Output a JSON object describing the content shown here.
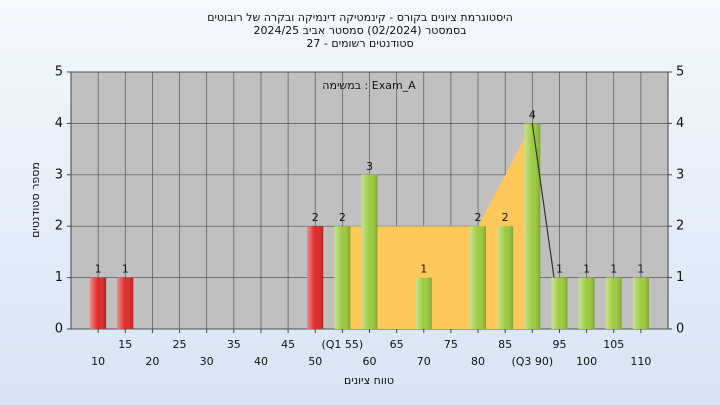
{
  "chart_data": {
    "type": "bar",
    "title": "היסטוגרמת ציונים בקורס - קינמטיקה דינמיקה ובקרה של רובוטים",
    "subtitle": "בסמסטר  (02/2024)  סמסטר אביב 2024/25",
    "subtitle2": "סטודנטים רשומים - 27",
    "annotation": "במשימה : Exam_A",
    "xlabel": "טווח ציונים",
    "ylabel": "מספר סטודנטים",
    "x": [
      10,
      15,
      20,
      25,
      30,
      35,
      40,
      45,
      50,
      55,
      60,
      65,
      70,
      75,
      80,
      85,
      90,
      95,
      100,
      105,
      110
    ],
    "values": [
      1,
      1,
      0,
      0,
      0,
      0,
      0,
      0,
      2,
      2,
      3,
      0,
      1,
      0,
      2,
      2,
      4,
      1,
      1,
      1,
      1
    ],
    "colors": [
      "#e02828",
      "#e02828",
      "#e02828",
      "#e02828",
      "#e02828",
      "#e02828",
      "#e02828",
      "#e02828",
      "#e02828",
      "#9ccc3c",
      "#9ccc3c",
      "#9ccc3c",
      "#9ccc3c",
      "#9ccc3c",
      "#9ccc3c",
      "#9ccc3c",
      "#9ccc3c",
      "#9ccc3c",
      "#9ccc3c",
      "#9ccc3c",
      "#9ccc3c"
    ],
    "area": {
      "color": "#ffc85a",
      "x": [
        55,
        55,
        80,
        90,
        90
      ],
      "y": [
        0,
        2,
        2,
        4,
        0
      ]
    },
    "line": {
      "color": "#333333",
      "x": [
        90,
        94
      ],
      "y": [
        4,
        1
      ]
    },
    "xlim": [
      5,
      115
    ],
    "xticks": [
      10,
      15,
      20,
      25,
      30,
      35,
      40,
      45,
      50,
      {
        "value": 55,
        "label": "(Q1 55)"
      },
      60,
      65,
      70,
      75,
      80,
      85,
      {
        "value": 90,
        "label": "(Q3 90)"
      },
      95,
      100,
      105,
      110
    ],
    "ylim": [
      0,
      5
    ],
    "yticks": [
      0,
      1,
      2,
      3,
      4,
      5
    ],
    "grid": true
  }
}
